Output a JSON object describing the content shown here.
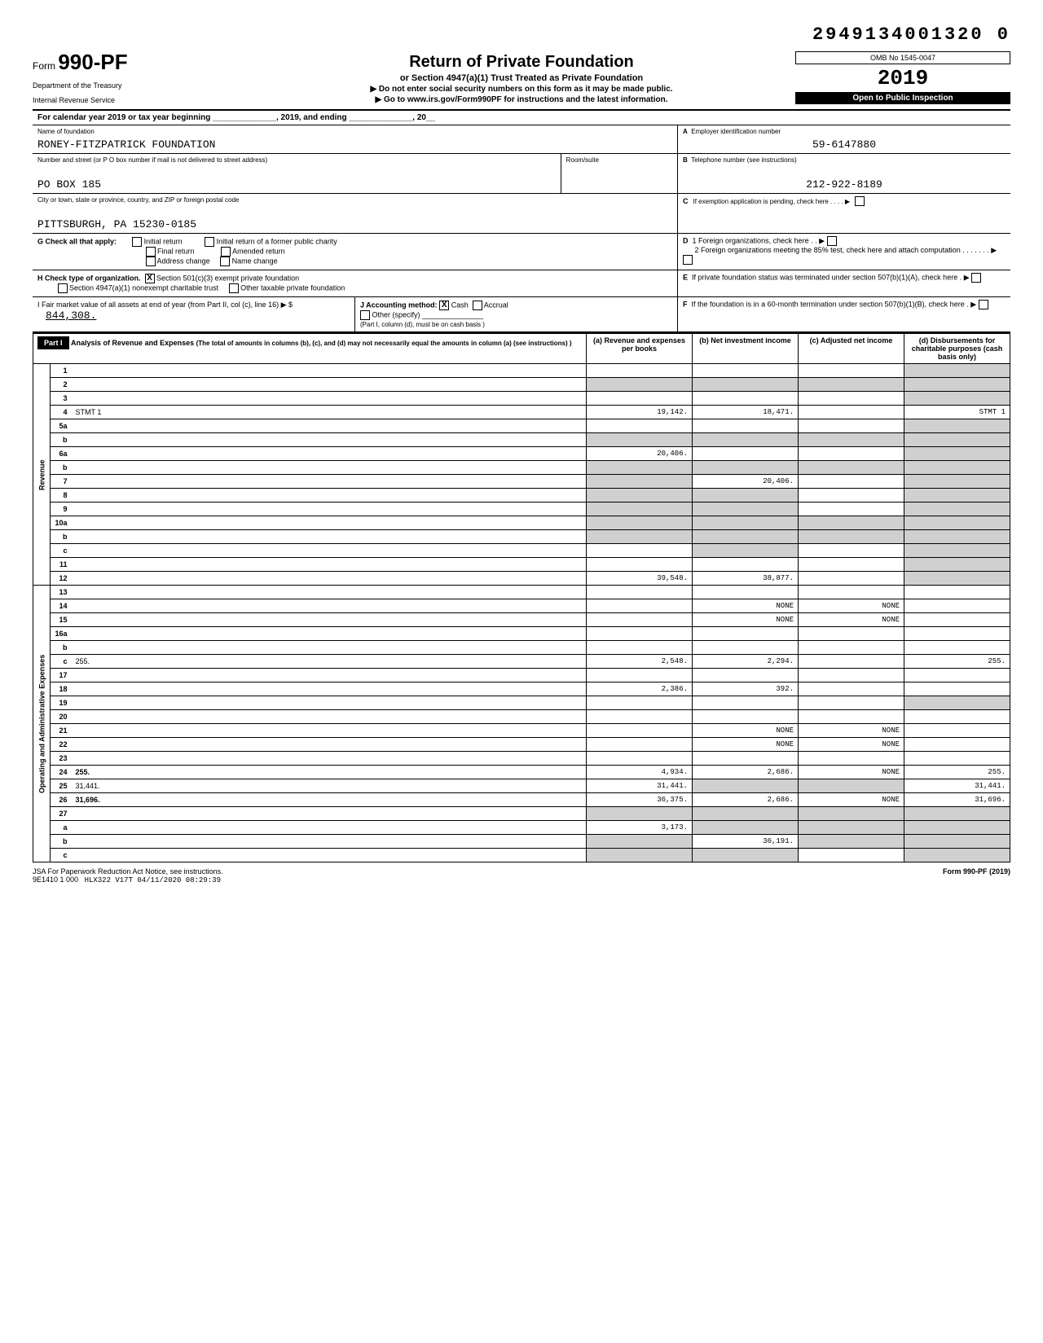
{
  "header": {
    "top_number": "2949134001320 0",
    "form_label": "Form",
    "form_number": "990-PF",
    "dept1": "Department of the Treasury",
    "dept2": "Internal Revenue Service",
    "title": "Return of Private Foundation",
    "subtitle1": "or Section 4947(a)(1) Trust Treated as Private Foundation",
    "subtitle2": "▶ Do not enter social security numbers on this form as it may be made public.",
    "subtitle3": "▶ Go to www.irs.gov/Form990PF for instructions and the latest information.",
    "omb": "OMB No 1545-0047",
    "year": "2019",
    "inspection": "Open to Public Inspection"
  },
  "cal_row": "For calendar year 2019 or tax year beginning ______________, 2019, and ending ______________, 20__",
  "foundation": {
    "name_label": "Name of foundation",
    "name": "RONEY-FITZPATRICK FOUNDATION",
    "addr_label": "Number and street (or P O box number if mail is not delivered to street address)",
    "addr": "PO BOX 185",
    "room_label": "Room/suite",
    "city_label": "City or town, state or province, country, and ZIP or foreign postal code",
    "city": "PITTSBURGH, PA 15230-0185",
    "ein_label_a": "A",
    "ein_label": "Employer identification number",
    "ein": "59-6147880",
    "phone_label_b": "B",
    "phone_label": "Telephone number (see instructions)",
    "phone": "212-922-8189",
    "exempt_label_c": "C",
    "exempt_label": "If exemption application is pending, check here . . . . ▶"
  },
  "checks": {
    "g_label": "G  Check all that apply:",
    "g_opts": [
      "Initial return",
      "Final return",
      "Address change",
      "Initial return of a former public charity",
      "Amended return",
      "Name change"
    ],
    "h_label": "H  Check type of organization.",
    "h_opt1": "Section 501(c)(3) exempt private foundation",
    "h_opt2": "Section 4947(a)(1) nonexempt charitable trust",
    "h_opt3": "Other taxable private foundation",
    "h_checked": "X",
    "i_label": "I  Fair market value of all assets at end of year (from Part II, col (c), line 16) ▶ $",
    "i_value": "844,308.",
    "i_note": "(Part I, column (d), must be on cash basis )",
    "j_label": "J  Accounting method:",
    "j_cash": "Cash",
    "j_cash_x": "X",
    "j_accrual": "Accrual",
    "j_other": "Other (specify) _______________",
    "d_label": "D",
    "d_1": "1  Foreign organizations, check here . . ▶",
    "d_2": "2  Foreign organizations meeting the 85% test, check here and attach computation . . . . . . . ▶",
    "e_label": "E",
    "e_text": "If private foundation status was terminated under section 507(b)(1)(A), check here . ▶",
    "f_label": "F",
    "f_text": "If the foundation is in a 60-month termination under section 507(b)(1)(B), check here . ▶"
  },
  "part1": {
    "header": "Part I",
    "title": "Analysis of Revenue and Expenses",
    "note": "(The total of amounts in columns (b), (c), and (d) may not necessarily equal the amounts in column (a) (see instructions) )",
    "col_a": "(a) Revenue and expenses per books",
    "col_b": "(b) Net investment income",
    "col_c": "(c) Adjusted net income",
    "col_d": "(d) Disbursements for charitable purposes (cash basis only)",
    "revenue_label": "Revenue",
    "opex_label": "Operating and Administrative Expenses"
  },
  "rows": [
    {
      "n": "1",
      "d": "",
      "a": "",
      "b": "",
      "c": "",
      "dgrey": true
    },
    {
      "n": "2",
      "d": "",
      "a": "",
      "b": "",
      "c": "",
      "greyall": true
    },
    {
      "n": "3",
      "d": "",
      "a": "",
      "b": "",
      "c": "",
      "dgrey": true
    },
    {
      "n": "4",
      "d": "STMT 1",
      "a": "19,142.",
      "b": "18,471.",
      "c": "",
      "dgrey": false
    },
    {
      "n": "5a",
      "d": "",
      "a": "",
      "b": "",
      "c": "",
      "dgrey": true
    },
    {
      "n": "b",
      "d": "",
      "a": "",
      "b": "",
      "c": "",
      "greyall": true
    },
    {
      "n": "6a",
      "d": "",
      "a": "20,406.",
      "b": "",
      "c": "",
      "dgrey": true
    },
    {
      "n": "b",
      "d": "",
      "a": "",
      "b": "",
      "c": "",
      "greyall": true
    },
    {
      "n": "7",
      "d": "",
      "a": "",
      "b": "20,406.",
      "c": "",
      "agrey": true,
      "dgrey": true
    },
    {
      "n": "8",
      "d": "",
      "a": "",
      "b": "",
      "c": "",
      "agrey": true,
      "bgrey": true,
      "dgrey": true
    },
    {
      "n": "9",
      "d": "",
      "a": "",
      "b": "",
      "c": "",
      "agrey": true,
      "bgrey": true,
      "dgrey": true
    },
    {
      "n": "10a",
      "d": "",
      "a": "",
      "b": "",
      "c": "",
      "greyall": true
    },
    {
      "n": "b",
      "d": "",
      "a": "",
      "b": "",
      "c": "",
      "greyall": true
    },
    {
      "n": "c",
      "d": "",
      "a": "",
      "b": "",
      "c": "",
      "bgrey": true,
      "dgrey": true
    },
    {
      "n": "11",
      "d": "",
      "a": "",
      "b": "",
      "c": "",
      "dgrey": true
    },
    {
      "n": "12",
      "d": "",
      "a": "39,548.",
      "b": "38,877.",
      "c": "",
      "bold": true,
      "dgrey": true
    },
    {
      "n": "13",
      "d": "",
      "a": "",
      "b": "",
      "c": ""
    },
    {
      "n": "14",
      "d": "",
      "a": "",
      "b": "NONE",
      "c": "NONE"
    },
    {
      "n": "15",
      "d": "",
      "a": "",
      "b": "NONE",
      "c": "NONE"
    },
    {
      "n": "16a",
      "d": "",
      "a": "",
      "b": "",
      "c": ""
    },
    {
      "n": "b",
      "d": "",
      "a": "",
      "b": "",
      "c": ""
    },
    {
      "n": "c",
      "d": "255.",
      "a": "2,548.",
      "b": "2,294.",
      "c": ""
    },
    {
      "n": "17",
      "d": "",
      "a": "",
      "b": "",
      "c": ""
    },
    {
      "n": "18",
      "d": "",
      "a": "2,386.",
      "b": "392.",
      "c": ""
    },
    {
      "n": "19",
      "d": "",
      "a": "",
      "b": "",
      "c": "",
      "dgrey": true
    },
    {
      "n": "20",
      "d": "",
      "a": "",
      "b": "",
      "c": ""
    },
    {
      "n": "21",
      "d": "",
      "a": "",
      "b": "NONE",
      "c": "NONE"
    },
    {
      "n": "22",
      "d": "",
      "a": "",
      "b": "NONE",
      "c": "NONE"
    },
    {
      "n": "23",
      "d": "",
      "a": "",
      "b": "",
      "c": ""
    },
    {
      "n": "24",
      "d": "255.",
      "a": "4,934.",
      "b": "2,686.",
      "c": "NONE",
      "bold": true
    },
    {
      "n": "25",
      "d": "31,441.",
      "a": "31,441.",
      "b": "",
      "c": "",
      "bgrey": true,
      "cgrey": true
    },
    {
      "n": "26",
      "d": "31,696.",
      "a": "36,375.",
      "b": "2,686.",
      "c": "NONE",
      "bold": true
    },
    {
      "n": "27",
      "d": "",
      "a": "",
      "b": "",
      "c": "",
      "greyall": true
    },
    {
      "n": "a",
      "d": "",
      "a": "3,173.",
      "b": "",
      "c": "",
      "bold": true,
      "bgrey": true,
      "cgrey": true,
      "dgrey": true
    },
    {
      "n": "b",
      "d": "",
      "a": "",
      "b": "36,191.",
      "c": "",
      "bold": true,
      "agrey": true,
      "cgrey": true,
      "dgrey": true
    },
    {
      "n": "c",
      "d": "",
      "a": "",
      "b": "",
      "c": "",
      "bold": true,
      "agrey": true,
      "bgrey": true,
      "dgrey": true
    }
  ],
  "footer": {
    "left1": "JSA For Paperwork Reduction Act Notice, see instructions.",
    "left2": "9E1410 1 000",
    "stamp": "HLX322 V17T 04/11/2020 08:29:39",
    "right": "Form 990-PF (2019)"
  }
}
